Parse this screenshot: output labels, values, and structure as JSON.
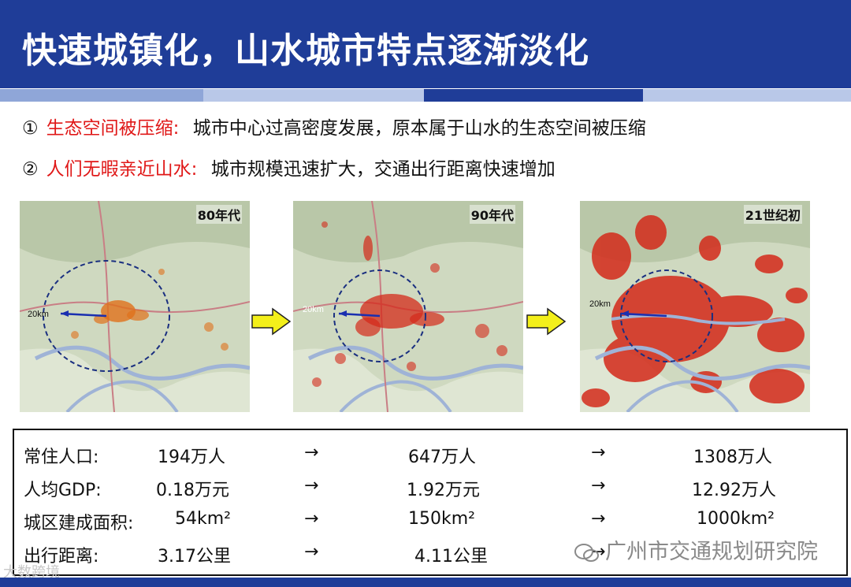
{
  "title": "快速城镇化，山水城市特点逐渐淡化",
  "points": [
    {
      "num": "①",
      "key": "生态空间被压缩:",
      "text": "城市中心过高密度发展，原本属于山水的生态空间被压缩"
    },
    {
      "num": "②",
      "key": "人们无暇亲近山水:",
      "text": "城市规模迅速扩大，交通出行距离快速增加"
    }
  ],
  "maps": [
    {
      "era": "80年代",
      "scale": "20km"
    },
    {
      "era": "90年代",
      "scale": "20km"
    },
    {
      "era": "21世纪初",
      "scale": "20km"
    }
  ],
  "arrow_symbol": "→",
  "stats": [
    {
      "label": "常住人口:",
      "v1": "194万人",
      "v2": "647万人",
      "v3": "1308万人"
    },
    {
      "label": "人均GDP:",
      "v1": "0.18万元",
      "v2": "1.92万元",
      "v3": "12.92万人"
    },
    {
      "label": "城区建成面积:",
      "v1": "54km²",
      "v2": "150km²",
      "v3": "1000km²"
    },
    {
      "label": "出行距离:",
      "v1": "3.17公里",
      "v2": "4.11公里",
      "v3": ""
    }
  ],
  "watermark": "广州市交通规划研究院",
  "watermark_left": "大数跨境",
  "colors": {
    "header": "#1f3d98",
    "keyword": "#e01818",
    "urban": "#d42a1a",
    "arrow_fill": "#f3ef1a"
  }
}
